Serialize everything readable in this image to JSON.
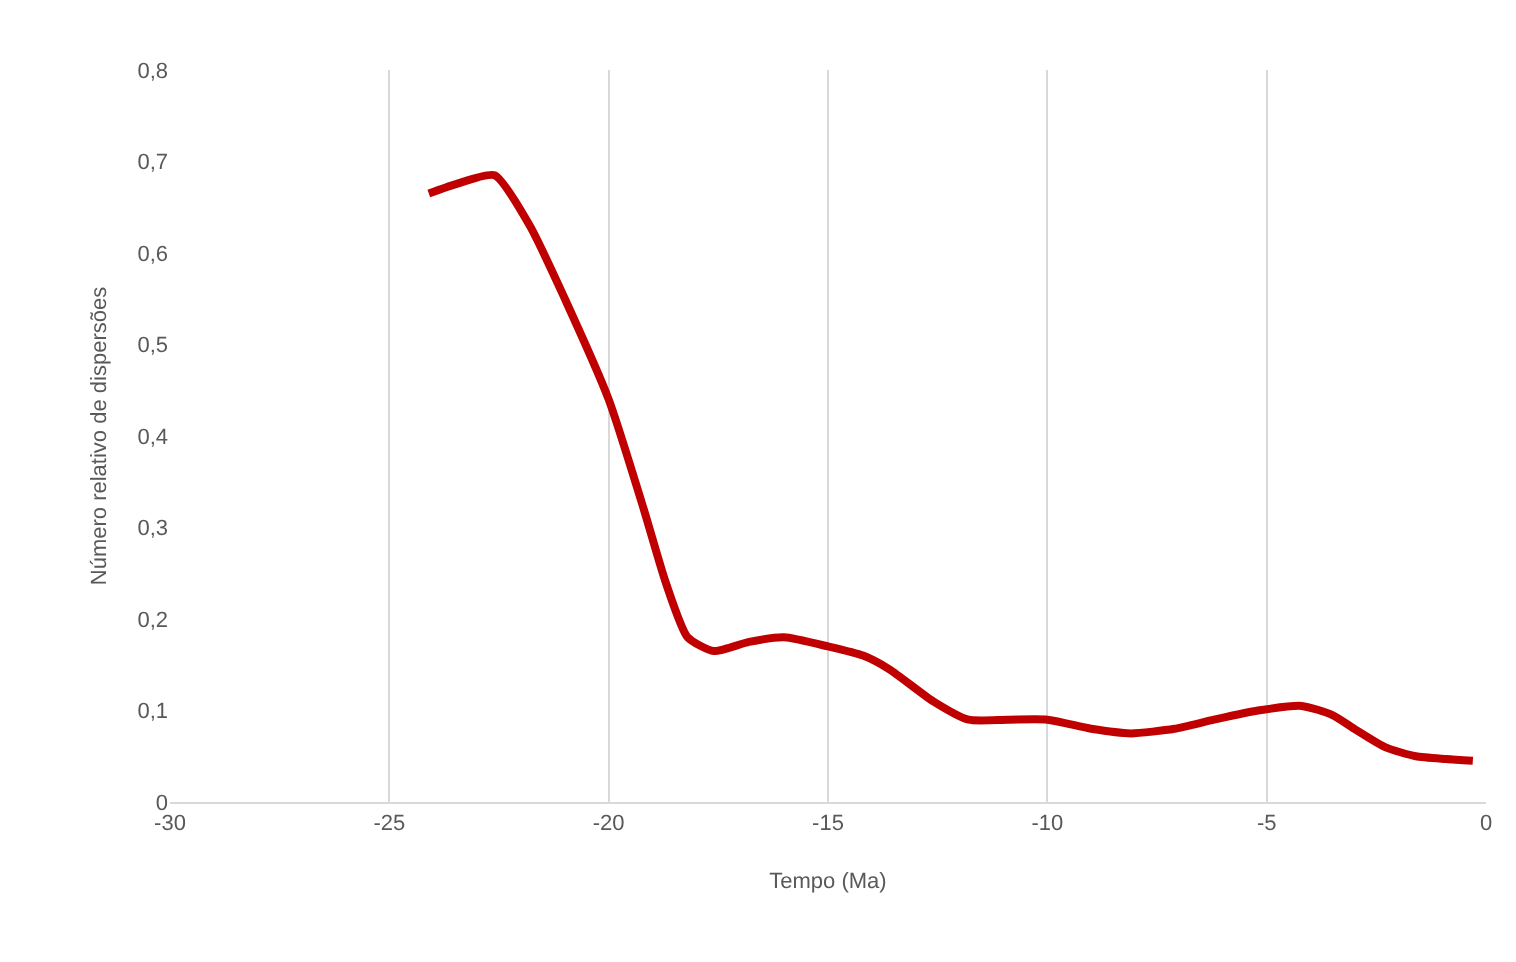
{
  "chart_data": {
    "type": "line",
    "xlabel": "Tempo (Ma)",
    "ylabel": "Número relativo de dispersões",
    "x": [
      -24.1,
      -23.5,
      -22.6,
      -21.8,
      -21,
      -20,
      -19.2,
      -18.7,
      -18.2,
      -17.6,
      -16.8,
      -16,
      -15,
      -14.2,
      -13.6,
      -12.6,
      -11.8,
      -10.9,
      -10,
      -9,
      -8.1,
      -7.1,
      -6.2,
      -5.2,
      -4.2,
      -3.5,
      -3,
      -2.3,
      -1.6,
      -0.9,
      -0.3
    ],
    "series": [
      {
        "color": "#c00000",
        "values": [
          0.665,
          0.675,
          0.685,
          0.63,
          0.55,
          0.44,
          0.32,
          0.24,
          0.18,
          0.165,
          0.175,
          0.18,
          0.17,
          0.16,
          0.145,
          0.11,
          0.09,
          0.09,
          0.09,
          0.08,
          0.075,
          0.08,
          0.09,
          0.1,
          0.105,
          0.095,
          0.08,
          0.06,
          0.05,
          0.047,
          0.045
        ]
      }
    ],
    "xlim": [
      -30,
      0
    ],
    "xticks": [
      -30,
      -25,
      -20,
      -15,
      -10,
      -5,
      0
    ],
    "ylim": [
      0,
      0.8
    ],
    "yticks": [
      {
        "value": 0,
        "label": "0"
      },
      {
        "value": 0.1,
        "label": "0,1"
      },
      {
        "value": 0.2,
        "label": "0,2"
      },
      {
        "value": 0.3,
        "label": "0,3"
      },
      {
        "value": 0.4,
        "label": "0,4"
      },
      {
        "value": 0.5,
        "label": "0,5"
      },
      {
        "value": 0.6,
        "label": "0,6"
      },
      {
        "value": 0.7,
        "label": "0,7"
      },
      {
        "value": 0.8,
        "label": "0,8"
      }
    ],
    "grid": "x",
    "marker": "none",
    "line_style": "solid"
  }
}
